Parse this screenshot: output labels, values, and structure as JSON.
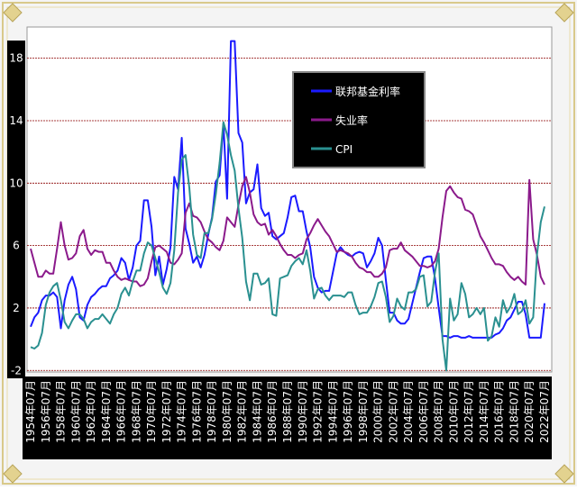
{
  "chart_data": {
    "type": "line",
    "categories": [
      "1954年07月",
      null,
      null,
      null,
      "1956年07月",
      null,
      null,
      null,
      "1958年07月",
      null,
      null,
      null,
      "1960年07月",
      null,
      null,
      null,
      "1962年07月",
      null,
      null,
      null,
      "1964年07月",
      null,
      null,
      null,
      "1966年07月",
      null,
      null,
      null,
      "1968年07月",
      null,
      null,
      null,
      "1970年07月",
      null,
      null,
      null,
      "1972年07月",
      null,
      null,
      null,
      "1974年07月",
      null,
      null,
      null,
      "1976年07月",
      null,
      null,
      null,
      "1978年07月",
      null,
      null,
      null,
      "1980年07月",
      null,
      null,
      null,
      "1982年07月",
      null,
      null,
      null,
      "1984年07月",
      null,
      null,
      null,
      "1986年07月",
      null,
      null,
      null,
      "1988年07月",
      null,
      null,
      null,
      "1990年07月",
      null,
      null,
      null,
      "1992年07月",
      null,
      null,
      null,
      "1994年07月",
      null,
      null,
      null,
      "1996年07月",
      null,
      null,
      null,
      "1998年07月",
      null,
      null,
      null,
      "2000年07月",
      null,
      null,
      null,
      "2002年07月",
      null,
      null,
      null,
      "2004年07月",
      null,
      null,
      null,
      "2006年07月",
      null,
      null,
      null,
      "2008年07月",
      null,
      null,
      null,
      "2010年07月",
      null,
      null,
      null,
      "2012年07月",
      null,
      null,
      null,
      "2014年07月",
      null,
      null,
      null,
      "2016年07月",
      null,
      null,
      null,
      "2018年07月",
      null,
      null,
      null,
      "2020年07月",
      null,
      null,
      null,
      "2022年07月"
    ],
    "series": [
      {
        "name": "联邦基金利率",
        "color": "#1a1aff",
        "values": [
          0.8,
          1.4,
          1.7,
          2.5,
          2.8,
          2.8,
          3.0,
          2.7,
          0.7,
          2.5,
          3.5,
          4.0,
          3.2,
          1.4,
          1.2,
          2.2,
          2.7,
          2.9,
          3.2,
          3.4,
          3.4,
          3.9,
          4.1,
          4.4,
          5.2,
          4.9,
          3.8,
          4.6,
          6.0,
          6.3,
          8.9,
          8.9,
          7.2,
          4.1,
          5.3,
          3.5,
          4.5,
          5.9,
          10.4,
          9.6,
          12.9,
          7.1,
          6.1,
          4.9,
          5.3,
          4.6,
          5.4,
          6.7,
          7.8,
          10.1,
          10.5,
          13.8,
          9.0,
          19.1,
          19.1,
          13.2,
          12.6,
          8.7,
          9.4,
          9.6,
          11.2,
          8.4,
          7.9,
          8.1,
          6.6,
          6.4,
          6.6,
          6.8,
          7.8,
          9.1,
          9.2,
          8.2,
          8.2,
          6.9,
          5.9,
          4.0,
          3.3,
          3.0,
          3.1,
          3.1,
          4.3,
          5.5,
          5.9,
          5.6,
          5.4,
          5.3,
          5.5,
          5.6,
          5.5,
          4.6,
          5.0,
          5.5,
          6.5,
          6.0,
          3.8,
          1.7,
          1.7,
          1.2,
          1.0,
          1.0,
          1.3,
          2.3,
          3.3,
          4.3,
          5.2,
          5.3,
          5.3,
          3.9,
          2.0,
          0.2,
          0.2,
          0.1,
          0.2,
          0.2,
          0.1,
          0.1,
          0.2,
          0.1,
          0.1,
          0.1,
          0.1,
          0.1,
          0.1,
          0.3,
          0.4,
          0.7,
          1.2,
          1.4,
          1.9,
          2.4,
          2.4,
          1.6,
          0.1,
          0.1,
          0.1,
          0.1,
          2.3
        ]
      },
      {
        "name": "失业率",
        "color": "#8b1a8b",
        "values": [
          5.8,
          4.9,
          4.0,
          4.0,
          4.4,
          4.2,
          4.2,
          5.8,
          7.5,
          6.0,
          5.1,
          5.2,
          5.5,
          6.6,
          7.0,
          5.8,
          5.4,
          5.7,
          5.6,
          5.6,
          4.9,
          4.9,
          4.4,
          4.0,
          3.8,
          3.9,
          3.8,
          3.7,
          3.7,
          3.4,
          3.5,
          3.9,
          5.0,
          5.9,
          6.0,
          5.8,
          5.6,
          4.9,
          4.8,
          5.1,
          5.5,
          8.1,
          8.7,
          7.9,
          7.8,
          7.5,
          6.9,
          6.4,
          6.2,
          5.9,
          5.7,
          6.3,
          7.8,
          7.5,
          7.2,
          8.6,
          9.8,
          10.4,
          9.4,
          8.0,
          7.5,
          7.3,
          7.4,
          6.7,
          7.0,
          6.6,
          6.1,
          5.7,
          5.4,
          5.4,
          5.2,
          5.4,
          5.5,
          6.4,
          6.8,
          7.3,
          7.7,
          7.3,
          6.9,
          6.6,
          6.1,
          5.6,
          5.7,
          5.6,
          5.5,
          5.3,
          4.9,
          4.6,
          4.5,
          4.3,
          4.3,
          4.0,
          4.0,
          4.2,
          4.6,
          5.7,
          5.8,
          5.8,
          6.2,
          5.7,
          5.5,
          5.3,
          5.0,
          4.7,
          4.7,
          4.6,
          4.7,
          5.0,
          5.8,
          7.8,
          9.5,
          9.8,
          9.4,
          9.1,
          9.0,
          8.3,
          8.2,
          8.0,
          7.3,
          6.6,
          6.2,
          5.7,
          5.2,
          4.8,
          4.8,
          4.7,
          4.3,
          4.0,
          3.8,
          4.0,
          3.7,
          3.5,
          10.2,
          6.4,
          5.4,
          4.0,
          3.5
        ]
      },
      {
        "name": "CPI",
        "color": "#2a9090",
        "values": [
          -0.5,
          -0.6,
          -0.4,
          0.4,
          2.2,
          3.0,
          3.4,
          3.6,
          2.5,
          1.1,
          0.7,
          1.2,
          1.6,
          1.6,
          1.3,
          0.7,
          1.1,
          1.3,
          1.3,
          1.6,
          1.3,
          1.0,
          1.6,
          2.0,
          2.9,
          3.3,
          2.8,
          3.7,
          4.4,
          4.4,
          5.5,
          6.2,
          6.0,
          5.2,
          4.3,
          3.3,
          2.9,
          3.6,
          5.7,
          9.4,
          11.5,
          11.8,
          9.7,
          6.7,
          5.4,
          5.2,
          6.8,
          6.8,
          7.7,
          9.3,
          11.3,
          13.9,
          13.1,
          11.8,
          10.8,
          8.4,
          6.5,
          3.7,
          2.5,
          4.2,
          4.2,
          3.5,
          3.6,
          3.9,
          1.6,
          1.5,
          3.9,
          4.0,
          4.1,
          4.7,
          5.0,
          5.2,
          4.8,
          5.7,
          4.4,
          2.6,
          3.2,
          3.3,
          2.8,
          2.5,
          2.8,
          2.8,
          2.8,
          2.7,
          3.0,
          3.0,
          2.2,
          1.6,
          1.7,
          1.7,
          2.1,
          2.7,
          3.6,
          3.7,
          2.7,
          1.1,
          1.5,
          2.6,
          2.1,
          1.9,
          3.0,
          3.0,
          3.2,
          4.0,
          4.1,
          2.1,
          2.4,
          4.3,
          5.5,
          0.0,
          -2.0,
          2.6,
          1.2,
          1.6,
          3.6,
          2.9,
          1.4,
          1.6,
          2.0,
          1.6,
          2.0,
          -0.1,
          0.2,
          1.4,
          0.8,
          2.5,
          1.7,
          2.1,
          2.9,
          1.6,
          1.8,
          2.5,
          1.0,
          1.4,
          5.4,
          7.5,
          8.5
        ]
      }
    ],
    "ylim": [
      -2.1,
      20
    ],
    "yticks": [
      -2,
      2,
      6,
      10,
      14,
      18
    ],
    "grid": true
  }
}
